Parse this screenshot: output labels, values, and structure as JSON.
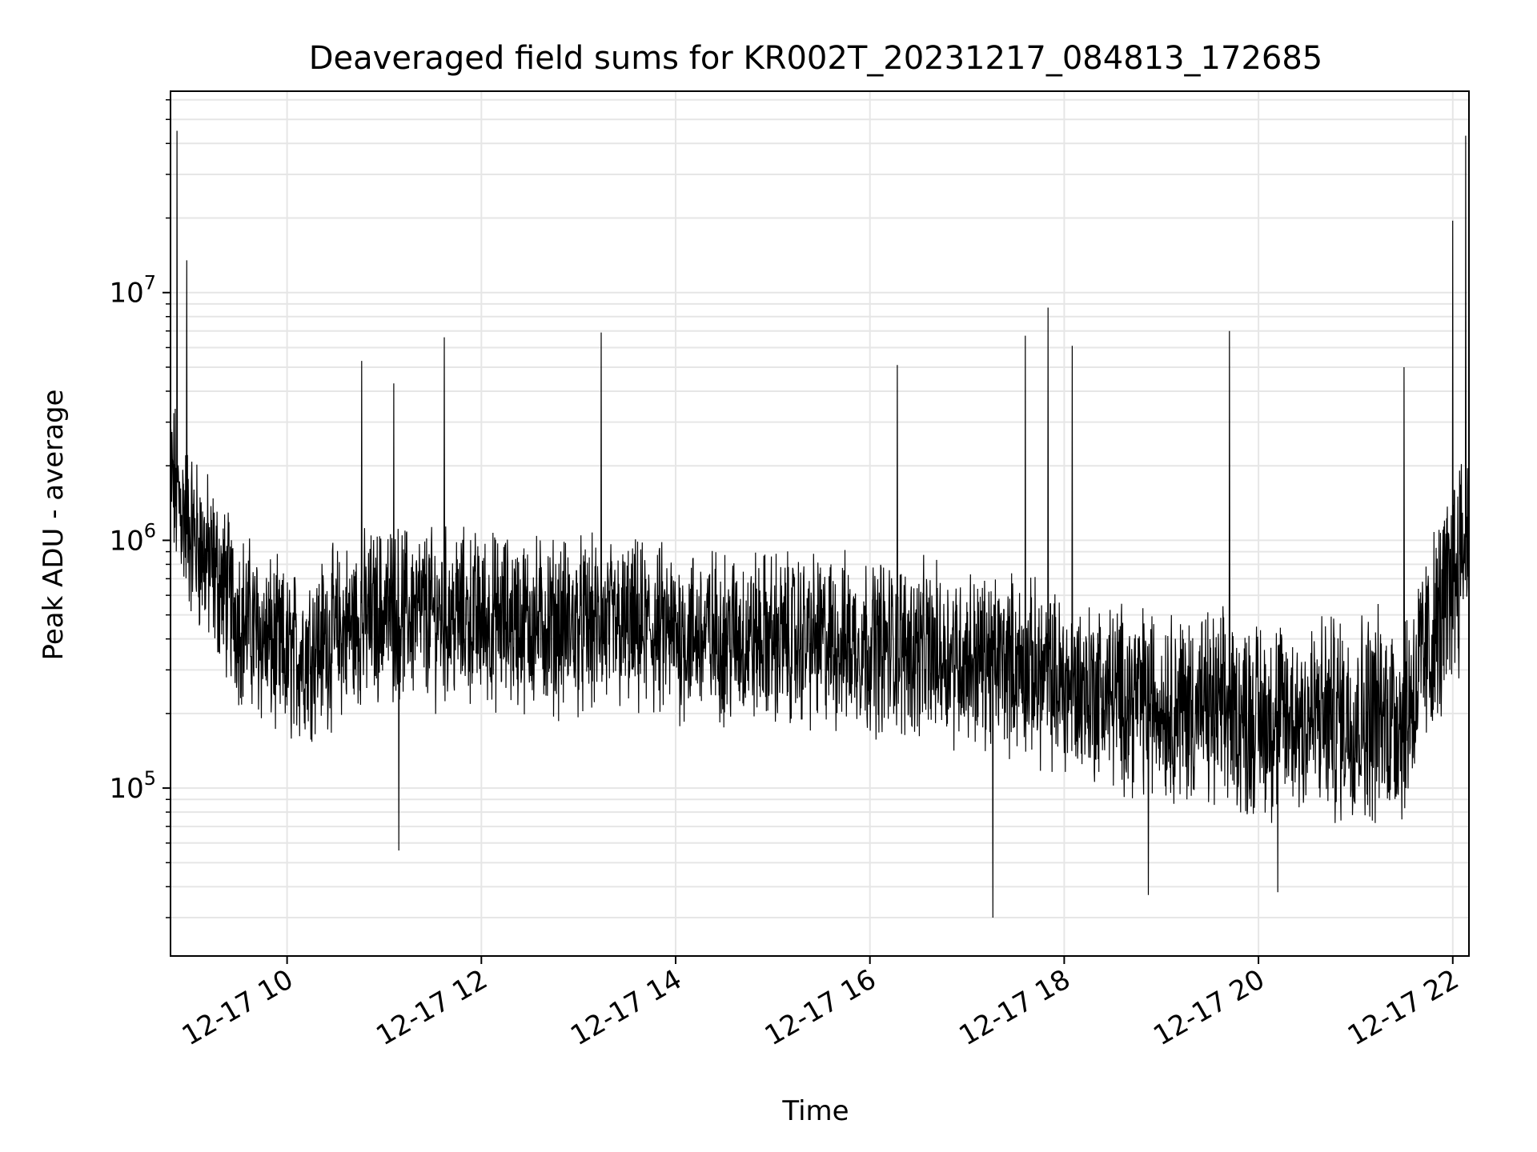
{
  "chart_data": {
    "type": "line",
    "title": "Deaveraged field sums for KR002T_20231217_084813_172685",
    "xlabel": "Time",
    "ylabel": "Peak ADU - average",
    "x_scale": "time",
    "y_scale": "log",
    "grid": true,
    "legend": "none",
    "xlim": [
      "2023-12-17 08:48",
      "2023-12-17 22:10"
    ],
    "ylim": [
      21000,
      65000000
    ],
    "x_ticks": [
      {
        "value": "2023-12-17 10:00",
        "label": "12-17 10"
      },
      {
        "value": "2023-12-17 12:00",
        "label": "12-17 12"
      },
      {
        "value": "2023-12-17 14:00",
        "label": "12-17 14"
      },
      {
        "value": "2023-12-17 16:00",
        "label": "12-17 16"
      },
      {
        "value": "2023-12-17 18:00",
        "label": "12-17 18"
      },
      {
        "value": "2023-12-17 20:00",
        "label": "12-17 20"
      },
      {
        "value": "2023-12-17 22:00",
        "label": "12-17 22"
      }
    ],
    "y_ticks": [
      {
        "value": 100000,
        "base": "10",
        "exp": "5"
      },
      {
        "value": 1000000,
        "base": "10",
        "exp": "6"
      },
      {
        "value": 10000000,
        "base": "10",
        "exp": "7"
      }
    ],
    "series": [
      {
        "color": "#000000",
        "baseline": [
          {
            "x": "2023-12-17 08:48",
            "y": 1800000
          },
          {
            "x": "2023-12-17 09:00",
            "y": 1100000
          },
          {
            "x": "2023-12-17 09:30",
            "y": 500000
          },
          {
            "x": "2023-12-17 10:00",
            "y": 330000
          },
          {
            "x": "2023-12-17 11:00",
            "y": 520000
          },
          {
            "x": "2023-12-17 12:00",
            "y": 480000
          },
          {
            "x": "2023-12-17 14:00",
            "y": 420000
          },
          {
            "x": "2023-12-17 16:00",
            "y": 380000
          },
          {
            "x": "2023-12-17 17:30",
            "y": 320000
          },
          {
            "x": "2023-12-17 18:00",
            "y": 260000
          },
          {
            "x": "2023-12-17 20:00",
            "y": 190000
          },
          {
            "x": "2023-12-17 21:30",
            "y": 200000
          },
          {
            "x": "2023-12-17 21:55",
            "y": 520000
          },
          {
            "x": "2023-12-17 22:10",
            "y": 1200000
          }
        ],
        "spikes": [
          {
            "x": "2023-12-17 08:52",
            "y": 45000000
          },
          {
            "x": "2023-12-17 08:58",
            "y": 13500000
          },
          {
            "x": "2023-12-17 10:46",
            "y": 5300000
          },
          {
            "x": "2023-12-17 11:06",
            "y": 4300000
          },
          {
            "x": "2023-12-17 11:37",
            "y": 6600000
          },
          {
            "x": "2023-12-17 13:14",
            "y": 6900000
          },
          {
            "x": "2023-12-17 16:17",
            "y": 5100000
          },
          {
            "x": "2023-12-17 17:36",
            "y": 6700000
          },
          {
            "x": "2023-12-17 17:50",
            "y": 8700000
          },
          {
            "x": "2023-12-17 18:05",
            "y": 6100000
          },
          {
            "x": "2023-12-17 19:42",
            "y": 7000000
          },
          {
            "x": "2023-12-17 21:30",
            "y": 5000000
          },
          {
            "x": "2023-12-17 22:00",
            "y": 19500000
          },
          {
            "x": "2023-12-17 22:08",
            "y": 43000000
          }
        ],
        "dips": [
          {
            "x": "2023-12-17 11:09",
            "y": 56000
          },
          {
            "x": "2023-12-17 17:16",
            "y": 30000
          },
          {
            "x": "2023-12-17 18:52",
            "y": 37000
          },
          {
            "x": "2023-12-17 20:12",
            "y": 38000
          }
        ]
      }
    ]
  }
}
